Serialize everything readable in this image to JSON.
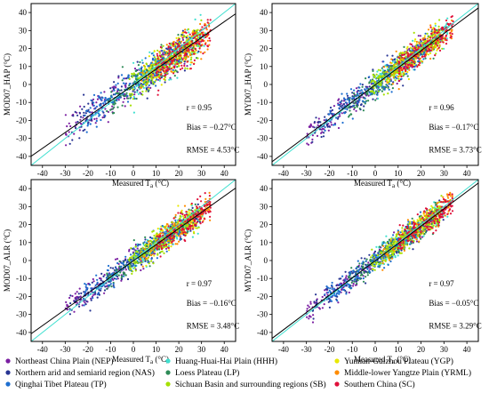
{
  "chart_data": [
    {
      "type": "scatter",
      "ylabel": "MOD07_HAP (°C)",
      "xlabel": "Measured T",
      "xlabel_sub": "a",
      "xlabel_unit": " (°C)",
      "xlim": [
        -45,
        45
      ],
      "ylim": [
        -45,
        45
      ],
      "xticks": [
        -40,
        -30,
        -20,
        -10,
        0,
        10,
        20,
        30,
        40
      ],
      "yticks": [
        -40,
        -30,
        -20,
        -10,
        0,
        10,
        20,
        30,
        40
      ],
      "stats": {
        "r": "r = 0.95",
        "bias": "Bias = −0.27°C",
        "rmse": "RMSE = 4.53°C"
      },
      "fit_line": {
        "slope": 0.88,
        "intercept": -0.3
      },
      "one_to_one_line": {
        "slope": 1,
        "intercept": 0
      }
    },
    {
      "type": "scatter",
      "ylabel": "MYD07_HAP (°C)",
      "xlabel": "Measured T",
      "xlabel_sub": "a",
      "xlabel_unit": " (°C)",
      "xlim": [
        -45,
        45
      ],
      "ylim": [
        -45,
        45
      ],
      "xticks": [
        -40,
        -30,
        -20,
        -10,
        0,
        10,
        20,
        30,
        40
      ],
      "yticks": [
        -40,
        -30,
        -20,
        -10,
        0,
        10,
        20,
        30,
        40
      ],
      "stats": {
        "r": "r = 0.96",
        "bias": "Bias = −0.17°C",
        "rmse": "RMSE = 3.73°C"
      },
      "fit_line": {
        "slope": 0.95,
        "intercept": -0.2
      },
      "one_to_one_line": {
        "slope": 1,
        "intercept": 0
      }
    },
    {
      "type": "scatter",
      "ylabel": "MOD07_ALR (°C)",
      "xlabel": "Measured T",
      "xlabel_sub": "a",
      "xlabel_unit": " (°C)",
      "xlim": [
        -45,
        45
      ],
      "ylim": [
        -45,
        45
      ],
      "xticks": [
        -40,
        -30,
        -20,
        -10,
        0,
        10,
        20,
        30,
        40
      ],
      "yticks": [
        -40,
        -30,
        -20,
        -10,
        0,
        10,
        20,
        30,
        40
      ],
      "stats": {
        "r": "r = 0.97",
        "bias": "Bias = −0.16°C",
        "rmse": "RMSE = 3.48°C"
      },
      "fit_line": {
        "slope": 0.9,
        "intercept": -0.2
      },
      "one_to_one_line": {
        "slope": 1,
        "intercept": 0
      }
    },
    {
      "type": "scatter",
      "ylabel": "MYD07_ALR (°C)",
      "xlabel": "Measured T",
      "xlabel_sub": "a",
      "xlabel_unit": " (°C)",
      "xlim": [
        -45,
        45
      ],
      "ylim": [
        -45,
        45
      ],
      "xticks": [
        -40,
        -30,
        -20,
        -10,
        0,
        10,
        20,
        30,
        40
      ],
      "yticks": [
        -40,
        -30,
        -20,
        -10,
        0,
        10,
        20,
        30,
        40
      ],
      "stats": {
        "r": "r = 0.97",
        "bias": "Bias = −0.05°C",
        "rmse": "RMSE = 3.29°C"
      },
      "fit_line": {
        "slope": 0.96,
        "intercept": -0.1
      },
      "one_to_one_line": {
        "slope": 1,
        "intercept": 0
      }
    }
  ],
  "colors": {
    "fit_line": "#000000",
    "one_to_one_line": "#40e0d0"
  },
  "legend": [
    {
      "label": "Northeast China Plain (NEP)",
      "color": "#7b1fa2"
    },
    {
      "label": "Huang-Huai-Hai Plain (HHH)",
      "color": "#40e0d0"
    },
    {
      "label": "Yunnan-Guizhou Plateau (YGP)",
      "color": "#e8e800"
    },
    {
      "label": "Northern arid and semiarid region (NAS)",
      "color": "#283593"
    },
    {
      "label": "Loess Plateau (LP)",
      "color": "#2e8b57"
    },
    {
      "label": "Middle-lower Yangtze Plain (YRML)",
      "color": "#ff8c00"
    },
    {
      "label": "Qinghai Tibet Plateau (TP)",
      "color": "#1e6fd0"
    },
    {
      "label": "Sichuan Basin and surrounding regions (SB)",
      "color": "#a5e000"
    },
    {
      "label": "Southern China (SC)",
      "color": "#e0103a"
    }
  ]
}
